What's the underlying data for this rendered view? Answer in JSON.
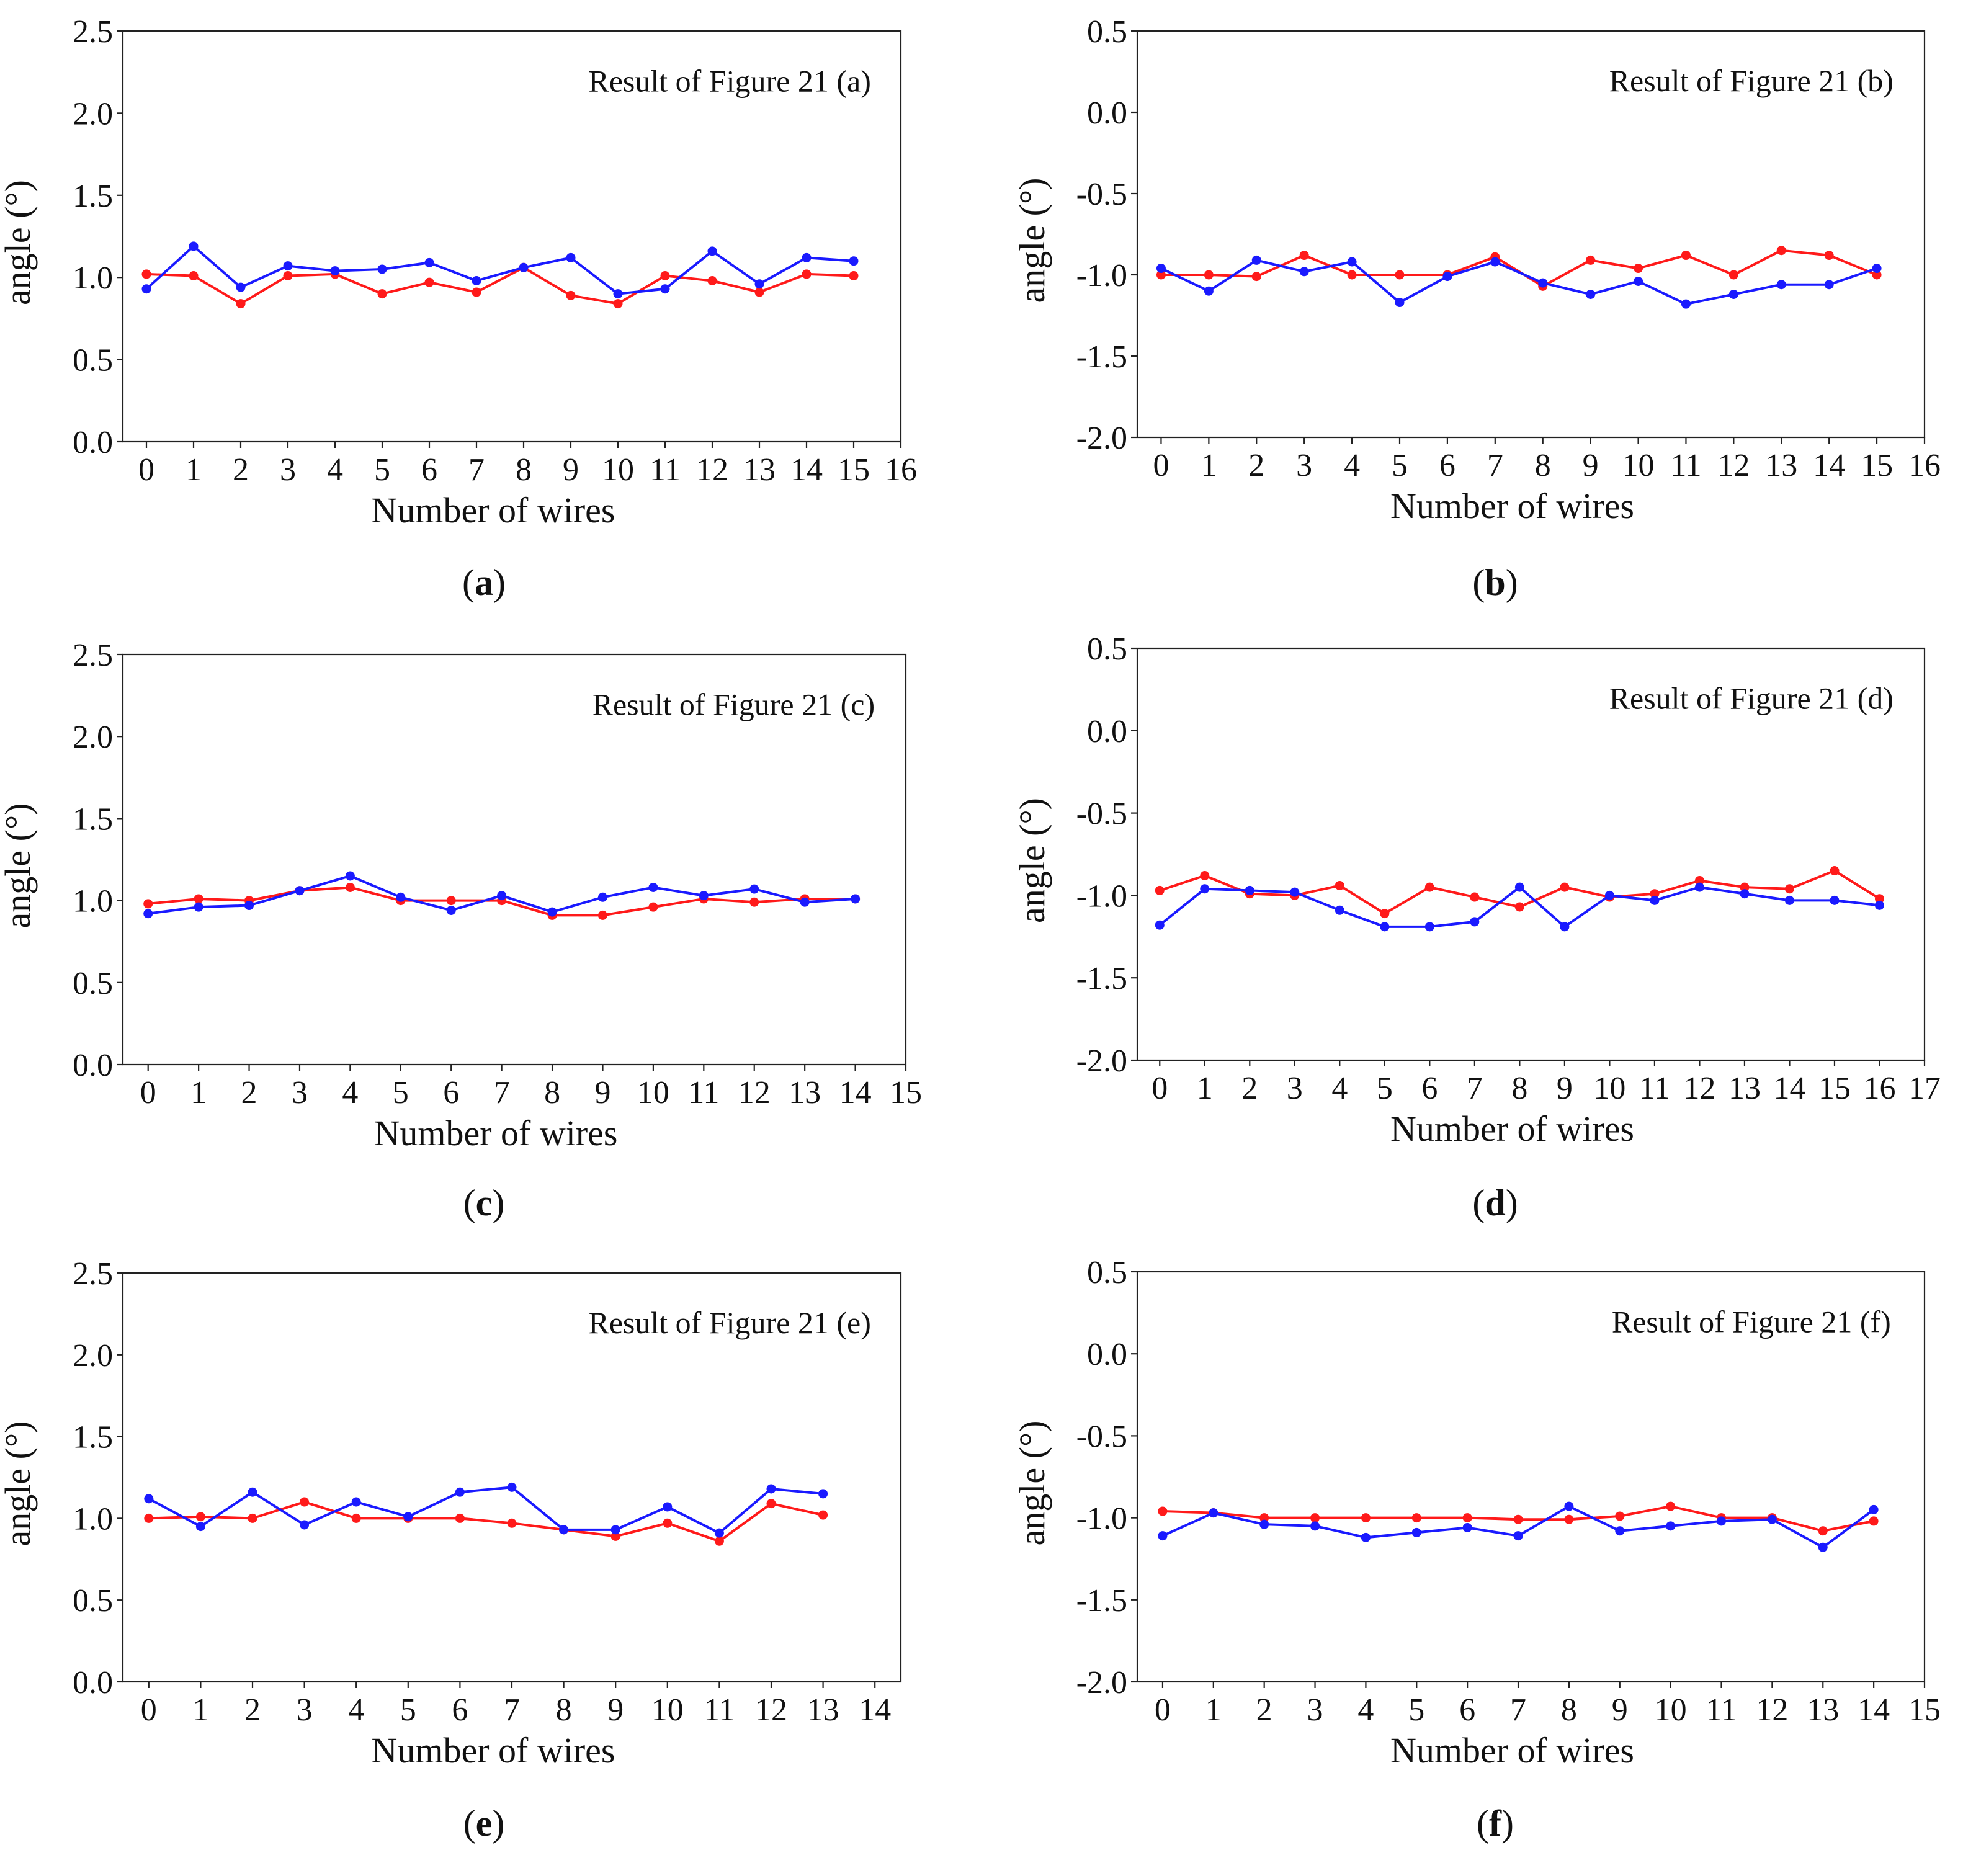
{
  "colors": {
    "series_red": "#ff1a1a",
    "series_blue": "#1a1aff"
  },
  "chart_data": [
    {
      "type": "line",
      "panel": "a",
      "title": "Result of Figure 21 (a)",
      "xlabel": "Number of wires",
      "ylabel": "angle (°)",
      "xlim": [
        -0.5,
        16
      ],
      "ylim": [
        0.0,
        2.5
      ],
      "xticks": [
        "0",
        "1",
        "2",
        "3",
        "4",
        "5",
        "6",
        "7",
        "8",
        "9",
        "10",
        "11",
        "12",
        "13",
        "14",
        "15",
        "16"
      ],
      "yticks": [
        "0.0",
        "0.5",
        "1.0",
        "1.5",
        "2.0",
        "2.5"
      ],
      "x": [
        0,
        1,
        2,
        3,
        4,
        5,
        6,
        7,
        8,
        9,
        10,
        11,
        12,
        13,
        14,
        15
      ],
      "series": [
        {
          "name": "red",
          "color": "#ff1a1a",
          "values": [
            1.02,
            1.01,
            0.84,
            1.01,
            1.02,
            0.9,
            0.97,
            0.91,
            1.06,
            0.89,
            0.84,
            1.01,
            0.98,
            0.91,
            1.02,
            1.01
          ]
        },
        {
          "name": "blue",
          "color": "#1a1aff",
          "values": [
            0.93,
            1.19,
            0.94,
            1.07,
            1.04,
            1.05,
            1.09,
            0.98,
            1.06,
            1.12,
            0.9,
            0.93,
            1.16,
            0.96,
            1.12,
            1.1
          ]
        }
      ]
    },
    {
      "type": "line",
      "panel": "b",
      "title": "Result of Figure 21 (b)",
      "xlabel": "Number of wires",
      "ylabel": "angle (°)",
      "xlim": [
        -0.5,
        16
      ],
      "ylim": [
        -2.0,
        0.5
      ],
      "xticks": [
        "0",
        "1",
        "2",
        "3",
        "4",
        "5",
        "6",
        "7",
        "8",
        "9",
        "10",
        "11",
        "12",
        "13",
        "14",
        "15",
        "16"
      ],
      "yticks": [
        "-2.0",
        "-1.5",
        "-1.0",
        "-0.5",
        "0.0",
        "0.5"
      ],
      "x": [
        0,
        1,
        2,
        3,
        4,
        5,
        6,
        7,
        8,
        9,
        10,
        11,
        12,
        13,
        14,
        15
      ],
      "series": [
        {
          "name": "red",
          "color": "#ff1a1a",
          "values": [
            -1.0,
            -1.0,
            -1.01,
            -0.88,
            -1.0,
            -1.0,
            -1.0,
            -0.89,
            -1.07,
            -0.91,
            -0.96,
            -0.88,
            -1.0,
            -0.85,
            -0.88,
            -1.0
          ]
        },
        {
          "name": "blue",
          "color": "#1a1aff",
          "values": [
            -0.96,
            -1.1,
            -0.91,
            -0.98,
            -0.92,
            -1.17,
            -1.01,
            -0.92,
            -1.05,
            -1.12,
            -1.04,
            -1.18,
            -1.12,
            -1.06,
            -1.06,
            -0.96
          ]
        }
      ]
    },
    {
      "type": "line",
      "panel": "c",
      "title": "Result of Figure 21 (c)",
      "xlabel": "Number of wires",
      "ylabel": "angle (°)",
      "xlim": [
        -0.5,
        15
      ],
      "ylim": [
        0.0,
        2.5
      ],
      "xticks": [
        "0",
        "1",
        "2",
        "3",
        "4",
        "5",
        "6",
        "7",
        "8",
        "9",
        "10",
        "11",
        "12",
        "13",
        "14",
        "15"
      ],
      "yticks": [
        "0.0",
        "0.5",
        "1.0",
        "1.5",
        "2.0",
        "2.5"
      ],
      "x": [
        0,
        1,
        2,
        3,
        4,
        5,
        6,
        7,
        8,
        9,
        10,
        11,
        12,
        13,
        14
      ],
      "series": [
        {
          "name": "red",
          "color": "#ff1a1a",
          "values": [
            0.98,
            1.01,
            1.0,
            1.06,
            1.08,
            1.0,
            1.0,
            1.0,
            0.91,
            0.91,
            0.96,
            1.01,
            0.99,
            1.01,
            1.01
          ]
        },
        {
          "name": "blue",
          "color": "#1a1aff",
          "values": [
            0.92,
            0.96,
            0.97,
            1.06,
            1.15,
            1.02,
            0.94,
            1.03,
            0.93,
            1.02,
            1.08,
            1.03,
            1.07,
            0.99,
            1.01
          ]
        }
      ]
    },
    {
      "type": "line",
      "panel": "d",
      "title": "Result of Figure 21 (d)",
      "xlabel": "Number of wires",
      "ylabel": "angle (°)",
      "xlim": [
        -0.5,
        17
      ],
      "ylim": [
        -2.0,
        0.5
      ],
      "xticks": [
        "0",
        "1",
        "2",
        "3",
        "4",
        "5",
        "6",
        "7",
        "8",
        "9",
        "10",
        "11",
        "12",
        "13",
        "14",
        "15",
        "16",
        "17"
      ],
      "yticks": [
        "-2.0",
        "-1.5",
        "-1.0",
        "-0.5",
        "0.0",
        "0.5"
      ],
      "x": [
        0,
        1,
        2,
        3,
        4,
        5,
        6,
        7,
        8,
        9,
        10,
        11,
        12,
        13,
        14,
        15,
        16
      ],
      "series": [
        {
          "name": "red",
          "color": "#ff1a1a",
          "values": [
            -0.97,
            -0.88,
            -0.99,
            -1.0,
            -0.94,
            -1.11,
            -0.95,
            -1.01,
            -1.07,
            -0.95,
            -1.01,
            -0.99,
            -0.91,
            -0.95,
            -0.96,
            -0.85,
            -1.02
          ]
        },
        {
          "name": "blue",
          "color": "#1a1aff",
          "values": [
            -1.18,
            -0.96,
            -0.97,
            -0.98,
            -1.09,
            -1.19,
            -1.19,
            -1.16,
            -0.95,
            -1.19,
            -1.0,
            -1.03,
            -0.95,
            -0.99,
            -1.03,
            -1.03,
            -1.06
          ]
        }
      ]
    },
    {
      "type": "line",
      "panel": "e",
      "title": "Result of Figure 21 (e)",
      "xlabel": "Number of wires",
      "ylabel": "angle (°)",
      "xlim": [
        -0.5,
        14.5
      ],
      "ylim": [
        0.0,
        2.5
      ],
      "xticks": [
        "0",
        "1",
        "2",
        "3",
        "4",
        "5",
        "6",
        "7",
        "8",
        "9",
        "10",
        "11",
        "12",
        "13",
        "14"
      ],
      "yticks": [
        "0.0",
        "0.5",
        "1.0",
        "1.5",
        "2.0",
        "2.5"
      ],
      "x": [
        0,
        1,
        2,
        3,
        4,
        5,
        6,
        7,
        8,
        9,
        10,
        11,
        12,
        13
      ],
      "series": [
        {
          "name": "red",
          "color": "#ff1a1a",
          "values": [
            1.0,
            1.01,
            1.0,
            1.1,
            1.0,
            1.0,
            1.0,
            0.97,
            0.93,
            0.89,
            0.97,
            0.86,
            1.09,
            1.02
          ]
        },
        {
          "name": "blue",
          "color": "#1a1aff",
          "values": [
            1.12,
            0.95,
            1.16,
            0.96,
            1.1,
            1.01,
            1.16,
            1.19,
            0.93,
            0.93,
            1.07,
            0.91,
            1.18,
            1.15
          ]
        }
      ]
    },
    {
      "type": "line",
      "panel": "f",
      "title": "Result of Figure 21 (f)",
      "xlabel": "Number of wires",
      "ylabel": "angle (°)",
      "xlim": [
        -0.5,
        15
      ],
      "ylim": [
        -2.0,
        0.5
      ],
      "xticks": [
        "0",
        "1",
        "2",
        "3",
        "4",
        "5",
        "6",
        "7",
        "8",
        "9",
        "10",
        "11",
        "12",
        "13",
        "14",
        "15"
      ],
      "yticks": [
        "-2.0",
        "-1.5",
        "-1.0",
        "-0.5",
        "0.0",
        "0.5"
      ],
      "x": [
        0,
        1,
        2,
        3,
        4,
        5,
        6,
        7,
        8,
        9,
        10,
        11,
        12,
        13,
        14
      ],
      "series": [
        {
          "name": "red",
          "color": "#ff1a1a",
          "values": [
            -0.96,
            -0.97,
            -1.0,
            -1.0,
            -1.0,
            -1.0,
            -1.0,
            -1.01,
            -1.01,
            -0.99,
            -0.93,
            -1.0,
            -1.0,
            -1.08,
            -1.02
          ]
        },
        {
          "name": "blue",
          "color": "#1a1aff",
          "values": [
            -1.11,
            -0.97,
            -1.04,
            -1.05,
            -1.12,
            -1.09,
            -1.06,
            -1.11,
            -0.93,
            -1.08,
            -1.05,
            -1.02,
            -1.01,
            -1.18,
            -0.95
          ]
        }
      ]
    }
  ],
  "captions": [
    "a",
    "b",
    "c",
    "d",
    "e",
    "f"
  ]
}
